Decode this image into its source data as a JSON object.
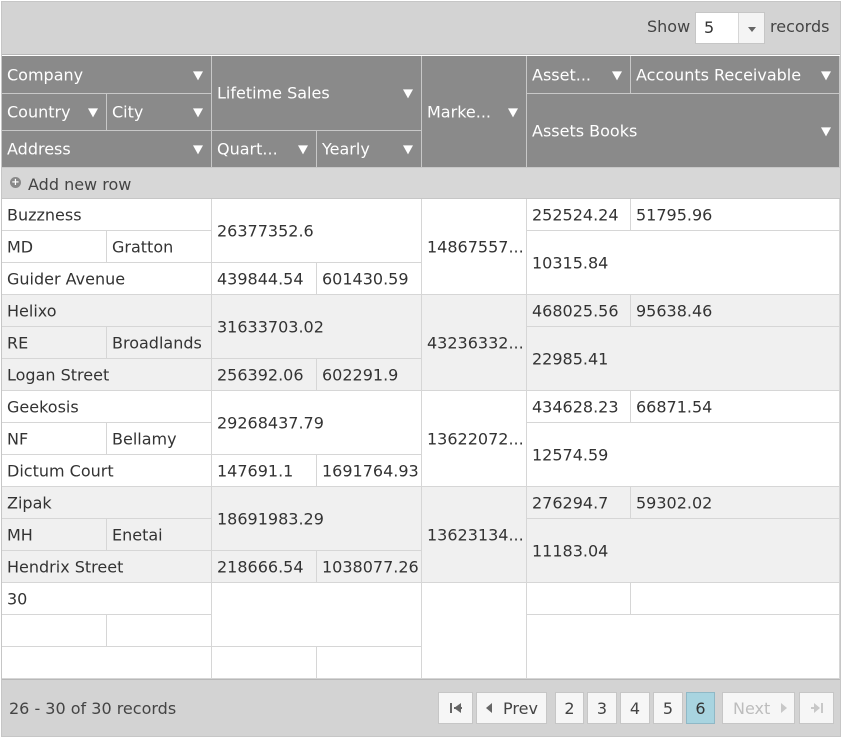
{
  "toolbar": {
    "show_label": "Show",
    "page_size": "5",
    "records_label": "records"
  },
  "columns": {
    "company": "Company",
    "country": "Country",
    "city": "City",
    "address": "Address",
    "lifetime_sales": "Lifetime Sales",
    "quarterly": "Quart...",
    "yearly": "Yearly",
    "market": "Marke...",
    "assets": "Asset...",
    "accounts_receivable": "Accounts Receivable",
    "assets_books": "Assets Books"
  },
  "add_new_row": "Add new row",
  "rows": [
    {
      "company": "Buzzness",
      "country": "MD",
      "city": "Gratton",
      "address": "Guider Avenue",
      "lifetime_sales": "26377352.6",
      "quarterly": "439844.54",
      "yearly": "601430.59",
      "market": "14867557...",
      "assets": "252524.24",
      "accounts_receivable": "51795.96",
      "assets_books": "10315.84"
    },
    {
      "company": "Helixo",
      "country": "RE",
      "city": "Broadlands",
      "address": "Logan Street",
      "lifetime_sales": "31633703.02",
      "quarterly": "256392.06",
      "yearly": "602291.9",
      "market": "43236332...",
      "assets": "468025.56",
      "accounts_receivable": "95638.46",
      "assets_books": "22985.41"
    },
    {
      "company": "Geekosis",
      "country": "NF",
      "city": "Bellamy",
      "address": "Dictum Court",
      "lifetime_sales": "29268437.79",
      "quarterly": "147691.1",
      "yearly": "1691764.93",
      "market": "13622072...",
      "assets": "434628.23",
      "accounts_receivable": "66871.54",
      "assets_books": "12574.59"
    },
    {
      "company": "Zipak",
      "country": "MH",
      "city": "Enetai",
      "address": "Hendrix Street",
      "lifetime_sales": "18691983.29",
      "quarterly": "218666.54",
      "yearly": "1038077.26",
      "market": "13623134...",
      "assets": "276294.7",
      "accounts_receivable": "59302.02",
      "assets_books": "11183.04"
    },
    {
      "company": "30",
      "country": "",
      "city": "",
      "address": "",
      "lifetime_sales": "",
      "quarterly": "",
      "yearly": "",
      "market": "",
      "assets": "",
      "accounts_receivable": "",
      "assets_books": ""
    }
  ],
  "footer": {
    "summary": "26 - 30 of 30 records",
    "prev": "Prev",
    "next": "Next",
    "pages": [
      "2",
      "3",
      "4",
      "5",
      "6"
    ],
    "active_page": "6"
  }
}
